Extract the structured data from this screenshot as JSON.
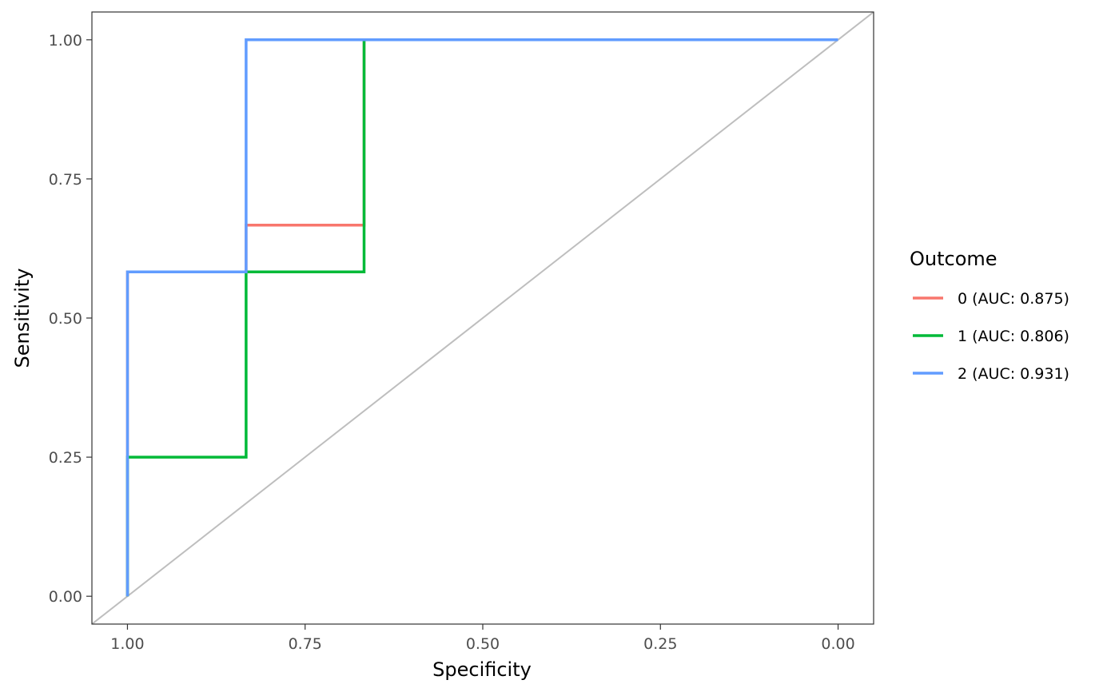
{
  "chart_data": {
    "type": "line",
    "title": "",
    "xlabel": "Specificity",
    "ylabel": "Sensitivity",
    "x_reversed": true,
    "xlim": [
      1.05,
      -0.05
    ],
    "ylim": [
      -0.05,
      1.05
    ],
    "x_ticks": [
      1.0,
      0.75,
      0.5,
      0.25,
      0.0
    ],
    "x_tick_labels": [
      "1.00",
      "0.75",
      "0.50",
      "0.25",
      "0.00"
    ],
    "y_ticks": [
      0.0,
      0.25,
      0.5,
      0.75,
      1.0
    ],
    "y_tick_labels": [
      "0.00",
      "0.25",
      "0.50",
      "0.75",
      "1.00"
    ],
    "grid": false,
    "reference_line": {
      "from": [
        1.0,
        0.0
      ],
      "to": [
        0.0,
        1.0
      ],
      "color": "#bebebe"
    },
    "legend": {
      "title": "Outcome",
      "position": "right"
    },
    "series": [
      {
        "name": "0 (AUC: 0.875)",
        "color": "#F8766D",
        "x": [
          1.0,
          1.0,
          0.833,
          0.833,
          0.667,
          0.667,
          0.0
        ],
        "y": [
          0.0,
          0.583,
          0.583,
          0.667,
          0.667,
          1.0,
          1.0
        ]
      },
      {
        "name": "1 (AUC: 0.806)",
        "color": "#00BA38",
        "x": [
          1.0,
          1.0,
          0.833,
          0.833,
          0.667,
          0.667,
          0.0
        ],
        "y": [
          0.0,
          0.25,
          0.25,
          0.583,
          0.583,
          1.0,
          1.0
        ]
      },
      {
        "name": "2 (AUC: 0.931)",
        "color": "#619CFF",
        "x": [
          1.0,
          1.0,
          0.833,
          0.833,
          0.0
        ],
        "y": [
          0.0,
          0.583,
          0.583,
          1.0,
          1.0
        ]
      }
    ]
  }
}
